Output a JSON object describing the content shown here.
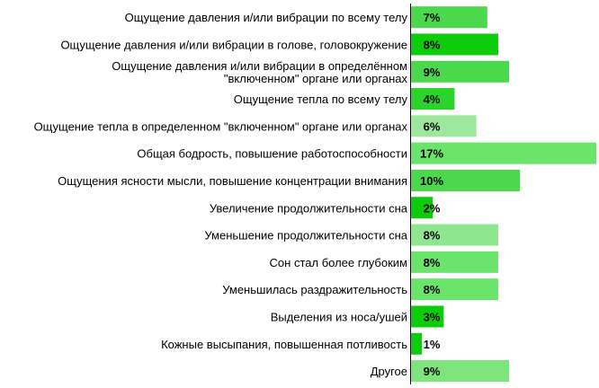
{
  "chart_data": {
    "type": "bar",
    "orientation": "horizontal",
    "grid": false,
    "legend": "none",
    "categories": [
      [
        "Ощущение давления и/или вибрации по всему телу"
      ],
      [
        "Ощущение давления и/или вибрации в голове, головокружение"
      ],
      [
        "Ощущение давления и/или вибрации в определённом",
        "\"включенном\" органе или органах"
      ],
      [
        "Ощущение тепла по всему телу"
      ],
      [
        "Ощущение тепла в определенном \"включенном\" органе или органах"
      ],
      [
        "Общая бодрость, повышение работоспособности"
      ],
      [
        "Ощущения ясности мысли, повышение концентрации внимания"
      ],
      [
        "Увеличение продолжительности сна"
      ],
      [
        "Уменьшение продолжительности сна"
      ],
      [
        "Сон стал более глубоким"
      ],
      [
        "Уменьшилась раздражительность"
      ],
      [
        "Выделения из носа/ушей"
      ],
      [
        "Кожные высыпания, повышенная потливость"
      ],
      [
        "Другое"
      ]
    ],
    "values": [
      7,
      8,
      9,
      4,
      6,
      17,
      10,
      2,
      8,
      8,
      8,
      3,
      1,
      9
    ],
    "value_labels": [
      "7%",
      "8%",
      "9%",
      "4%",
      "6%",
      "17%",
      "10%",
      "2%",
      "8%",
      "8%",
      "8%",
      "3%",
      "1%",
      "9%"
    ],
    "bar_colors": [
      "#4cd84c",
      "#0ccc0c",
      "#4cd84c",
      "#2ad42a",
      "#9ee89e",
      "#6ae46a",
      "#4cd84c",
      "#0ccc0c",
      "#8ee68e",
      "#6ae46a",
      "#6ae46a",
      "#0ccc0c",
      "#0ccc0c",
      "#7ce57c"
    ],
    "xlim": [
      0,
      17
    ]
  }
}
